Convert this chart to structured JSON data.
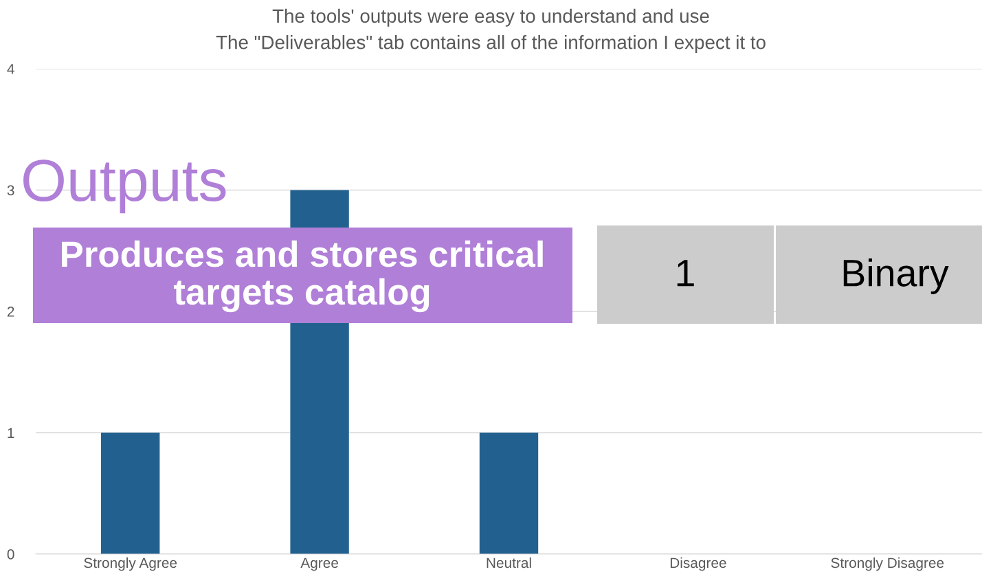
{
  "chart_data": {
    "type": "bar",
    "title": "The tools' outputs were easy to understand and use",
    "subtitle": "The \"Deliverables\" tab contains all of the information I expect it to",
    "categories": [
      "Strongly Agree",
      "Agree",
      "Neutral",
      "Disagree",
      "Strongly Disagree"
    ],
    "values": [
      1,
      3,
      1,
      0,
      0
    ],
    "color": "#22618f",
    "ylim": [
      0,
      4
    ],
    "yticks": [
      0,
      1,
      2,
      3,
      4
    ],
    "grid": "y",
    "annotations": [
      "Outputs",
      "Produces and stores critical\ntargets catalog",
      "1",
      "Binary"
    ]
  }
}
